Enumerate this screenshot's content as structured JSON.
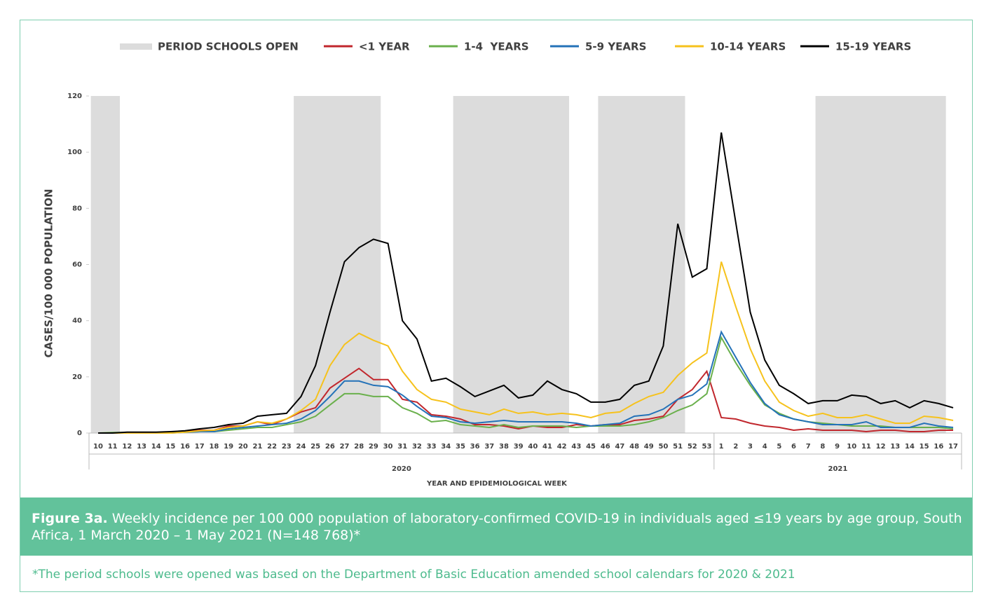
{
  "chart_data": {
    "type": "line",
    "legend_shading": "PERIOD SCHOOLS OPEN",
    "shading_color": "#dcdcdc",
    "years": [
      "2020",
      "2021"
    ],
    "categories": [
      [
        "10",
        "11",
        "12",
        "13",
        "14",
        "15",
        "16",
        "17",
        "18",
        "19",
        "20",
        "21",
        "22",
        "23",
        "24",
        "25",
        "26",
        "27",
        "28",
        "29",
        "30",
        "31",
        "32",
        "33",
        "34",
        "35",
        "36",
        "37",
        "38",
        "39",
        "40",
        "41",
        "42",
        "43",
        "45",
        "46",
        "47",
        "48",
        "49",
        "50",
        "51",
        "52",
        "53"
      ],
      [
        "1",
        "2",
        "3",
        "4",
        "5",
        "6",
        "7",
        "8",
        "9",
        "10",
        "11",
        "12",
        "13",
        "14",
        "15",
        "16",
        "17"
      ]
    ],
    "school_open": [
      [
        [
          "10",
          "11"
        ],
        [
          "24",
          "29"
        ],
        [
          "35",
          "42"
        ],
        [
          "46",
          "51"
        ]
      ],
      [
        [
          "8",
          "16"
        ]
      ]
    ],
    "y_label": "CASES/100 000 POPULATION",
    "x_label": "YEAR AND EPIDEMIOLOGICAL WEEK",
    "ylim": [
      0,
      120
    ],
    "yticks": [
      0,
      20,
      40,
      60,
      80,
      100,
      120
    ],
    "series": [
      {
        "name": "<1 YEAR",
        "color": "#c1272d",
        "values": [
          [
            0,
            0,
            0,
            0,
            0,
            0,
            0.5,
            1,
            1,
            2.5,
            2.5,
            4,
            3,
            5,
            7.5,
            9,
            16,
            19.5,
            23,
            19,
            19,
            12,
            11,
            6.5,
            6,
            5,
            3,
            3,
            2.5,
            1.5,
            2.5,
            2,
            2,
            3,
            2.5,
            3,
            3,
            4.5,
            5,
            6,
            12,
            15.5,
            22
          ],
          [
            5.5,
            5,
            3.5,
            2.5,
            2,
            1,
            1.5,
            1,
            1,
            1,
            0.5,
            1,
            1,
            0.5,
            0.5,
            1,
            1
          ]
        ]
      },
      {
        "name": "1-4  YEARS",
        "color": "#6ab04c",
        "values": [
          [
            0,
            0.2,
            0.2,
            0.2,
            0.2,
            0.2,
            0.3,
            0.5,
            0.5,
            1,
            1.5,
            2,
            2,
            3,
            4,
            6,
            10,
            14,
            14,
            13,
            13,
            9,
            7,
            4,
            4.5,
            3,
            2.5,
            2,
            3,
            2,
            2.5,
            2.5,
            2.5,
            2,
            2.5,
            2.5,
            2.5,
            3,
            4,
            5.5,
            8,
            10,
            14
          ],
          [
            34,
            25,
            17,
            10,
            7,
            5,
            4,
            3.5,
            3,
            2.5,
            2.5,
            2.5,
            2,
            2,
            2,
            2,
            1.5
          ]
        ]
      },
      {
        "name": "5-9 YEARS",
        "color": "#2472b8",
        "values": [
          [
            0,
            0,
            0,
            0,
            0,
            0,
            0.3,
            0.5,
            0.5,
            1.5,
            2,
            2.5,
            3,
            3.5,
            5,
            8,
            13,
            18.5,
            18.5,
            17,
            16.5,
            13.5,
            9.5,
            6,
            5.5,
            4,
            3.5,
            4,
            4.5,
            4,
            4,
            4,
            4,
            3.5,
            2.5,
            3,
            3.5,
            6,
            6.5,
            8.5,
            12,
            13.5,
            17.5
          ],
          [
            36,
            27,
            18,
            10.5,
            6.5,
            5,
            4,
            3,
            3,
            3,
            4,
            2,
            2,
            2,
            3.5,
            2.5,
            2
          ]
        ]
      },
      {
        "name": "10-14 YEARS",
        "color": "#f6c21c",
        "values": [
          [
            0,
            0,
            0,
            0,
            0,
            0,
            0.3,
            0.8,
            1,
            2,
            2.5,
            4,
            3.5,
            5,
            8,
            12,
            24,
            31.5,
            35.5,
            33,
            31,
            22,
            15.5,
            12,
            11,
            8.5,
            7.5,
            6.5,
            8.5,
            7,
            7.5,
            6.5,
            7,
            6.5,
            5.5,
            7,
            7.5,
            10.5,
            13,
            14.5,
            20.5,
            25,
            28.5
          ],
          [
            61,
            45,
            30,
            18.5,
            11,
            8,
            6,
            7,
            5.5,
            5.5,
            6.5,
            5,
            3.5,
            3.5,
            6,
            5.5,
            4.5
          ]
        ]
      },
      {
        "name": "15-19 YEARS",
        "color": "#000000",
        "values": [
          [
            0,
            0,
            0.3,
            0.3,
            0.3,
            0.5,
            0.8,
            1.5,
            2,
            3,
            3.5,
            6,
            6.5,
            7,
            13,
            24,
            43,
            61,
            66,
            69,
            67.5,
            40,
            33.5,
            18.5,
            19.5,
            16.5,
            13,
            15,
            17,
            12.5,
            13.5,
            18.5,
            15.5,
            14,
            11,
            11,
            12,
            17,
            18.5,
            31,
            74.5,
            55.5,
            58.5
          ],
          [
            107,
            75,
            43,
            26,
            17,
            14,
            10.5,
            11.5,
            11.5,
            13.5,
            13,
            10.5,
            11.5,
            9,
            11.5,
            10.5,
            9
          ]
        ]
      }
    ]
  },
  "caption_bold": "Figure 3a.",
  "caption": "Weekly incidence per 100 000 population of laboratory-confirmed COVID-19 in individuals aged ≤19 years by age group, South Africa, 1 March 2020 – 1 May 2021 (N=148 768)*",
  "footnote": "*The period schools were opened was based on the Department of Basic Education amended school calendars for 2020 & 2021"
}
